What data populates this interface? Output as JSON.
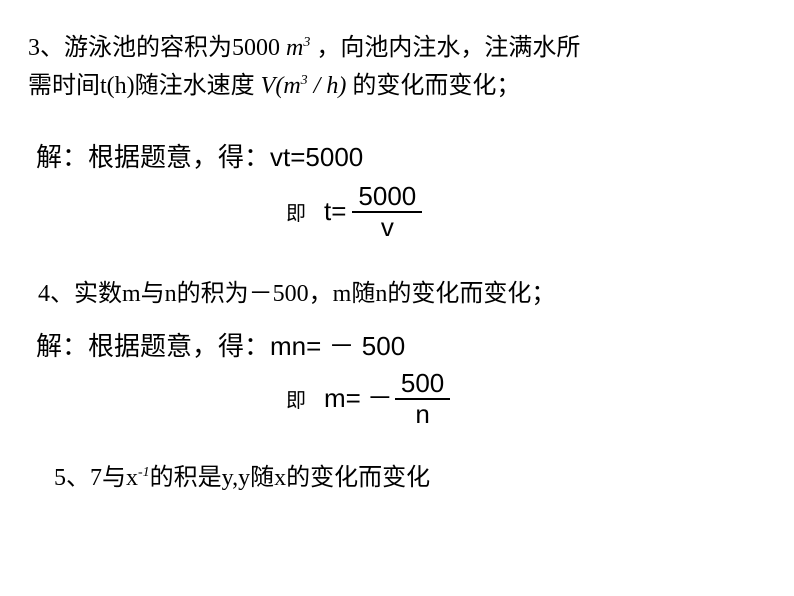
{
  "q3": {
    "line1_a": "3、游泳池的容积为5000 ",
    "m": "m",
    "exp3": "3",
    "line1_b": " ，向池内注水，注满水所",
    "line2_a": "需时间t(h)随注水速度 ",
    "V": "V",
    "paren_open": "(",
    "m2": "m",
    "slash": " / ",
    "h": "h",
    "paren_close": ")",
    "line2_b": " 的变化而变化；"
  },
  "sol3": {
    "text_a": "解：根据题意，得：",
    "eq": "vt=5000",
    "ji": "即",
    "lhs": "t=",
    "num": "5000",
    "den": "v"
  },
  "q4": {
    "text": "4、实数m与n的积为－500，m随n的变化而变化；"
  },
  "sol4": {
    "text_a": "解：根据题意，得：",
    "eq_a": "mn= ",
    "minus": "－",
    "eq_b": " 500",
    "ji": "即",
    "lhs": "m= ",
    "neg": "－",
    "num": "500",
    "den": "n"
  },
  "q5": {
    "text_a": "5、7与x",
    "exp": "-1",
    "text_b": "的积是y,y随x的变化而变化"
  },
  "colors": {
    "text": "#000000",
    "bg": "#ffffff"
  }
}
